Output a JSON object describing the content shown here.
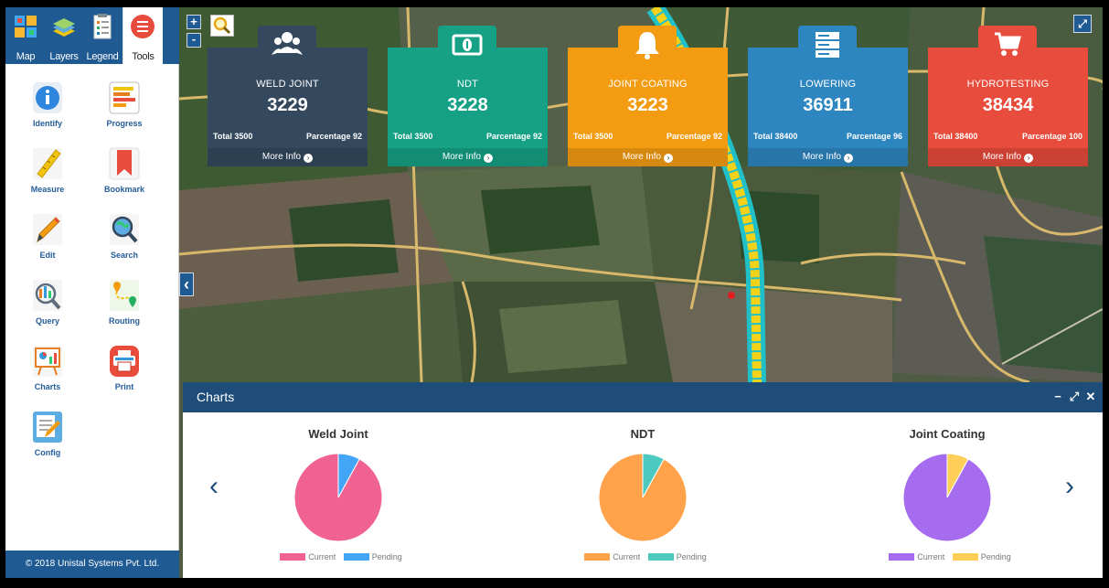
{
  "sidebar": {
    "nav": [
      {
        "label": "Map",
        "icon": "map-grid-icon"
      },
      {
        "label": "Layers",
        "icon": "layers-icon"
      },
      {
        "label": "Legend",
        "icon": "legend-icon"
      },
      {
        "label": "Tools",
        "icon": "tools-list-icon",
        "active": true
      }
    ],
    "tools": [
      {
        "label": "Identify",
        "icon": "info-icon"
      },
      {
        "label": "Progress",
        "icon": "progress-bars-icon"
      },
      {
        "label": "Measure",
        "icon": "ruler-icon"
      },
      {
        "label": "Bookmark",
        "icon": "bookmark-icon"
      },
      {
        "label": "Edit",
        "icon": "pencil-icon"
      },
      {
        "label": "Search",
        "icon": "globe-search-icon"
      },
      {
        "label": "Query",
        "icon": "query-magnifier-icon"
      },
      {
        "label": "Routing",
        "icon": "route-pin-icon"
      },
      {
        "label": "Charts",
        "icon": "chart-board-icon"
      },
      {
        "label": "Print",
        "icon": "printer-icon"
      },
      {
        "label": "Config",
        "icon": "config-doc-icon"
      }
    ],
    "copyright": "© 2018 Unistal Systems Pvt. Ltd."
  },
  "map": {
    "zoom_in": "+",
    "zoom_out": "-",
    "collapse_arrow": "‹"
  },
  "cards": [
    {
      "title": "WELD JOINT",
      "value": "3229",
      "total": "Total 3500",
      "percentage": "Parcentage 92",
      "more": "More Info",
      "color": "#34495e",
      "icon": "users-icon"
    },
    {
      "title": "NDT",
      "value": "3228",
      "total": "Total 3500",
      "percentage": "Parcentage 92",
      "more": "More Info",
      "color": "#16a085",
      "icon": "money-icon"
    },
    {
      "title": "JOINT COATING",
      "value": "3223",
      "total": "Total 3500",
      "percentage": "Parcentage 92",
      "more": "More Info",
      "color": "#f39c12",
      "icon": "bell-icon"
    },
    {
      "title": "LOWERING",
      "value": "36911",
      "total": "Total 38400",
      "percentage": "Parcentage 96",
      "more": "More Info",
      "color": "#2e86c1",
      "icon": "server-icon"
    },
    {
      "title": "HYDROTESTING",
      "value": "38434",
      "total": "Total 38400",
      "percentage": "Parcentage 100",
      "more": "More Info",
      "color": "#e74c3c",
      "icon": "cart-icon"
    }
  ],
  "charts_panel": {
    "title": "Charts",
    "minimize": "−",
    "expand": "⤢",
    "close": "✕",
    "prev": "‹",
    "next": "›"
  },
  "chart_data": [
    {
      "type": "pie",
      "title": "Weld Joint",
      "labels": [
        "Current",
        "Pending"
      ],
      "values": [
        92,
        8
      ],
      "colors": [
        "#f06292",
        "#42a5f5"
      ]
    },
    {
      "type": "pie",
      "title": "NDT",
      "labels": [
        "Current",
        "Pending"
      ],
      "values": [
        92,
        8
      ],
      "colors": [
        "#ffa24a",
        "#4dc9c0"
      ]
    },
    {
      "type": "pie",
      "title": "Joint Coating",
      "labels": [
        "Current",
        "Pending"
      ],
      "values": [
        92,
        8
      ],
      "colors": [
        "#a66cf0",
        "#ffce56"
      ]
    }
  ]
}
